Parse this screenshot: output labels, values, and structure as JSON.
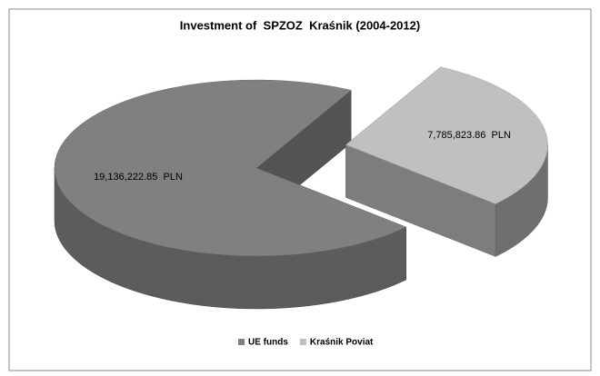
{
  "chart_data": {
    "type": "pie",
    "title": "Investment of  SPZOZ  Kraśnik (2004-2012)",
    "categories": [
      "UE funds",
      "Kraśnik Poviat"
    ],
    "values": [
      19136222.85,
      7785823.86
    ],
    "value_labels": [
      "19,136,222.85  PLN",
      "7,785,823.86  PLN"
    ],
    "colors": [
      "#808080",
      "#c0c0c0"
    ],
    "legend": "bottom"
  }
}
